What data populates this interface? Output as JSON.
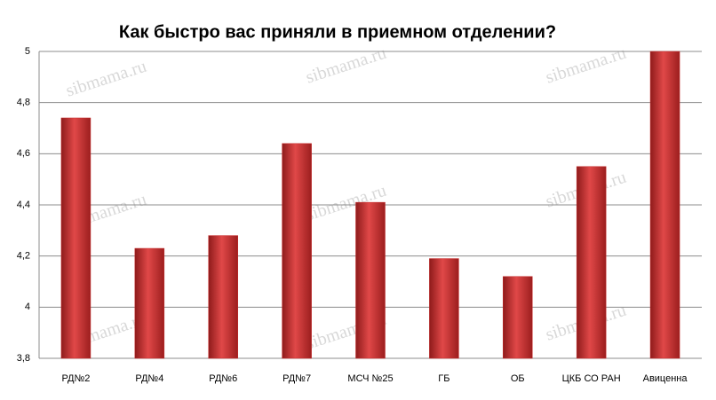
{
  "chart_data": {
    "type": "bar",
    "title": "Как быстро вас приняли в приемном отделении?",
    "categories": [
      "РД№2",
      "РД№4",
      "РД№6",
      "РД№7",
      "МСЧ №25",
      "ГБ",
      "ОБ",
      "ЦКБ СО РАН",
      "Авиценна"
    ],
    "values": [
      4.74,
      4.23,
      4.28,
      4.64,
      4.41,
      4.19,
      4.12,
      4.55,
      5
    ],
    "color": "#c62828",
    "ylim": [
      3.8,
      5
    ],
    "yticks": [
      {
        "value": 3.8,
        "label": "3,8"
      },
      4,
      {
        "value": 4.2,
        "label": "4,2"
      },
      {
        "value": 4.4,
        "label": "4,4"
      },
      {
        "value": 4.6,
        "label": "4,6"
      },
      {
        "value": 4.8,
        "label": "4,8"
      },
      5
    ],
    "grid": true,
    "watermark": "sibmama.ru"
  }
}
